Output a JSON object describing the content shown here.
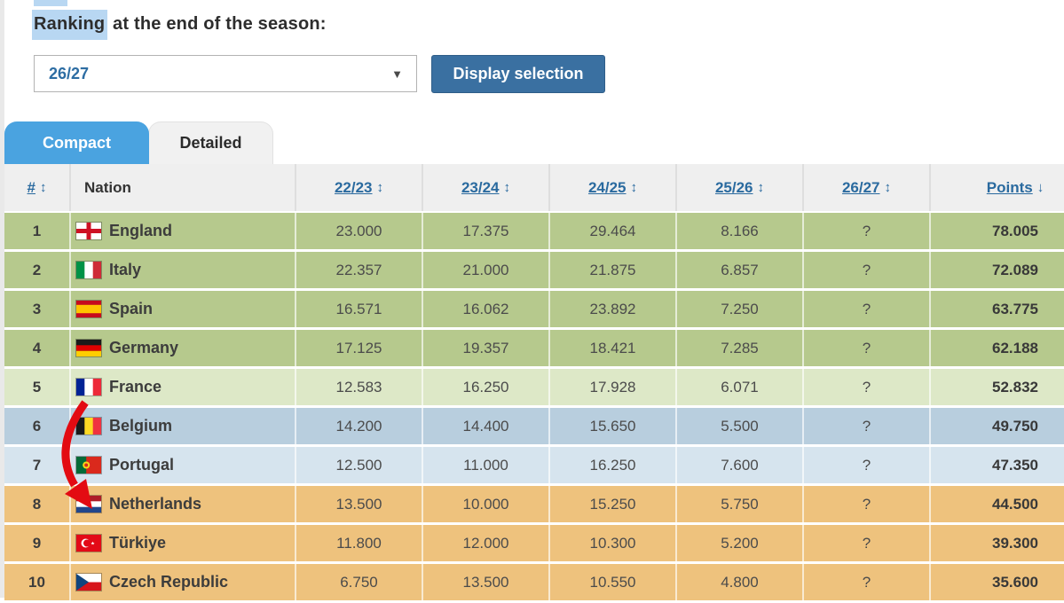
{
  "title": {
    "highlighted": "Ranking",
    "rest": " at the end of the season:"
  },
  "season_select": {
    "value": "26/27",
    "caret_icon": "▼"
  },
  "display_button": {
    "label": "Display selection"
  },
  "tabs": [
    {
      "label": "Compact",
      "active": true
    },
    {
      "label": "Detailed",
      "active": false
    }
  ],
  "table": {
    "headers": {
      "rank": "#",
      "nation": "Nation",
      "seasons": [
        "22/23",
        "23/24",
        "24/25",
        "25/26",
        "26/27"
      ],
      "points": "Points"
    },
    "sort_icons": {
      "rank": "↕",
      "seasons": "↕",
      "points": "↓"
    },
    "rows": [
      {
        "rank": "1",
        "nation": "England",
        "flag": "england",
        "tier": "green",
        "values": [
          "23.000",
          "17.375",
          "29.464",
          "8.166",
          "?"
        ],
        "points": "78.005"
      },
      {
        "rank": "2",
        "nation": "Italy",
        "flag": "italy",
        "tier": "green",
        "values": [
          "22.357",
          "21.000",
          "21.875",
          "6.857",
          "?"
        ],
        "points": "72.089"
      },
      {
        "rank": "3",
        "nation": "Spain",
        "flag": "spain",
        "tier": "green",
        "values": [
          "16.571",
          "16.062",
          "23.892",
          "7.250",
          "?"
        ],
        "points": "63.775"
      },
      {
        "rank": "4",
        "nation": "Germany",
        "flag": "germany",
        "tier": "green",
        "values": [
          "17.125",
          "19.357",
          "18.421",
          "7.285",
          "?"
        ],
        "points": "62.188"
      },
      {
        "rank": "5",
        "nation": "France",
        "flag": "france",
        "tier": "green_light",
        "values": [
          "12.583",
          "16.250",
          "17.928",
          "6.071",
          "?"
        ],
        "points": "52.832"
      },
      {
        "rank": "6",
        "nation": "Belgium",
        "flag": "belgium",
        "tier": "blue",
        "values": [
          "14.200",
          "14.400",
          "15.650",
          "5.500",
          "?"
        ],
        "points": "49.750"
      },
      {
        "rank": "7",
        "nation": "Portugal",
        "flag": "portugal",
        "tier": "blue_light",
        "values": [
          "12.500",
          "11.000",
          "16.250",
          "7.600",
          "?"
        ],
        "points": "47.350"
      },
      {
        "rank": "8",
        "nation": "Netherlands",
        "flag": "netherlands",
        "tier": "orange",
        "values": [
          "13.500",
          "10.000",
          "15.250",
          "5.750",
          "?"
        ],
        "points": "44.500"
      },
      {
        "rank": "9",
        "nation": "Türkiye",
        "flag": "turkiye",
        "tier": "orange",
        "values": [
          "11.800",
          "12.000",
          "10.300",
          "5.200",
          "?"
        ],
        "points": "39.300"
      },
      {
        "rank": "10",
        "nation": "Czech Republic",
        "flag": "czech",
        "tier": "orange",
        "values": [
          "6.750",
          "13.500",
          "10.550",
          "4.800",
          "?"
        ],
        "points": "35.600"
      }
    ]
  },
  "annotation": {
    "type": "red-arrow",
    "points_to": "Netherlands row"
  },
  "colors": {
    "accent_blue": "#4aa3e0",
    "button_blue": "#3a70a1",
    "link_blue": "#2a6a9f",
    "header_bg": "#efefef",
    "selection_highlight": "#b8d7f2",
    "arrow_red": "#e30b12",
    "tier_green": "#b6c98d",
    "tier_green_light": "#dde8c7",
    "tier_blue": "#b8cede",
    "tier_blue_light": "#d6e4ee",
    "tier_orange": "#eec27d"
  }
}
